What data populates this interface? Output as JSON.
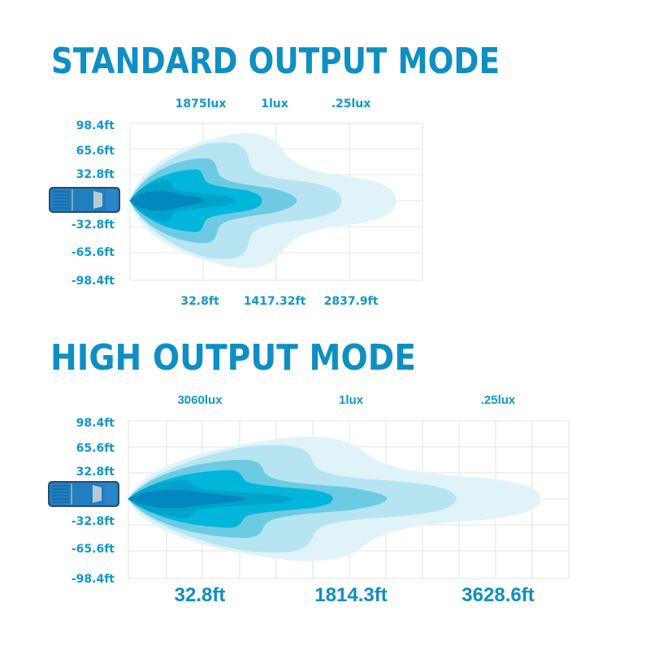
{
  "colors": {
    "title": "#0d8fc4",
    "label": "#1298cc",
    "beam": [
      "#dff3f9",
      "#b6e5f1",
      "#6ccbe3",
      "#00b6da",
      "#00a3cc",
      "#0088bf"
    ],
    "truck": "#1f7fc0"
  },
  "sections": [
    {
      "title": "STANDARD OUTPUT MODE",
      "lux_labels": [
        "1875lux",
        "1lux",
        ".25lux"
      ],
      "y_labels": [
        "98.4ft",
        "65.6ft",
        "32.8ft",
        "-32.8ft",
        "-65.6ft",
        "-98.4ft"
      ],
      "x_labels": [
        "32.8ft",
        "1417.32ft",
        "2837.9ft"
      ],
      "icon": "truck-top-view-icon"
    },
    {
      "title": "HIGH OUTPUT MODE",
      "lux_labels": [
        "3060lux",
        "1lux",
        ".25lux"
      ],
      "y_labels": [
        "98.4ft",
        "65.6ft",
        "32.8ft",
        "-32.8ft",
        "-65.6ft",
        "-98.4ft"
      ],
      "x_labels": [
        "32.8ft",
        "1814.3ft",
        "3628.6ft"
      ],
      "icon": "truck-top-view-icon"
    }
  ]
}
